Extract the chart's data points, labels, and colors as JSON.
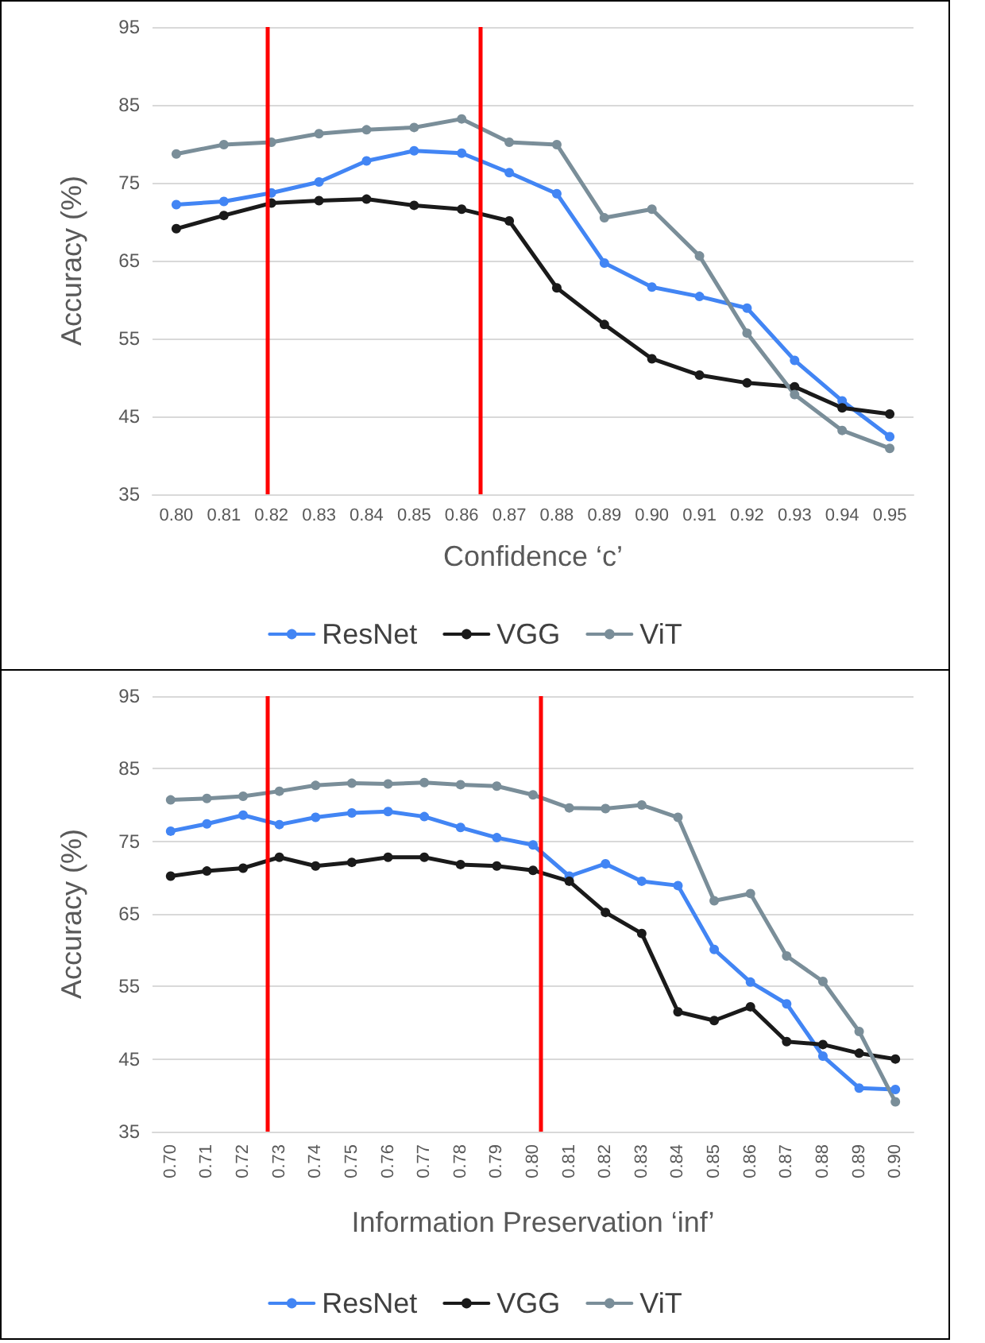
{
  "chart_data": [
    {
      "type": "line",
      "xlabel": "Confidence ‘c’",
      "ylabel": "Accuracy (%)",
      "x": [
        0.8,
        0.81,
        0.82,
        0.83,
        0.84,
        0.85,
        0.86,
        0.87,
        0.88,
        0.89,
        0.9,
        0.91,
        0.92,
        0.93,
        0.94,
        0.95
      ],
      "series": [
        {
          "name": "ResNet",
          "color": "#4285f4",
          "values": [
            72.2,
            72.6,
            73.7,
            75.1,
            77.8,
            79.1,
            78.8,
            76.3,
            73.6,
            64.7,
            61.6,
            60.4,
            58.9,
            52.2,
            47.0,
            42.4
          ]
        },
        {
          "name": "VGG",
          "color": "#1a1a1a",
          "values": [
            69.1,
            70.8,
            72.4,
            72.7,
            72.9,
            72.1,
            71.6,
            70.1,
            61.5,
            56.8,
            52.4,
            50.3,
            49.3,
            48.8,
            46.1,
            45.3
          ]
        },
        {
          "name": "ViT",
          "color": "#7a8e99",
          "values": [
            78.7,
            79.9,
            80.2,
            81.3,
            81.8,
            82.1,
            83.2,
            80.2,
            79.9,
            70.5,
            71.6,
            65.6,
            55.7,
            47.8,
            43.2,
            40.9
          ]
        }
      ],
      "xlim": [
        0.795,
        0.955
      ],
      "xticks": [
        {
          "value": 0.8,
          "label": "0.80"
        },
        {
          "value": 0.81,
          "label": "0.81"
        },
        {
          "value": 0.82,
          "label": "0.82"
        },
        {
          "value": 0.83,
          "label": "0.83"
        },
        {
          "value": 0.84,
          "label": "0.84"
        },
        {
          "value": 0.85,
          "label": "0.85"
        },
        {
          "value": 0.86,
          "label": "0.86"
        },
        {
          "value": 0.87,
          "label": "0.87"
        },
        {
          "value": 0.88,
          "label": "0.88"
        },
        {
          "value": 0.89,
          "label": "0.89"
        },
        {
          "value": 0.9,
          "label": "0.90"
        },
        {
          "value": 0.91,
          "label": "0.91"
        },
        {
          "value": 0.92,
          "label": "0.92"
        },
        {
          "value": 0.93,
          "label": "0.93"
        },
        {
          "value": 0.94,
          "label": "0.94"
        },
        {
          "value": 0.95,
          "label": "0.95"
        }
      ],
      "ylim": [
        35,
        95
      ],
      "yticks": [
        35,
        45,
        55,
        65,
        75,
        85,
        95
      ],
      "ref_lines": [
        {
          "axis": "x",
          "value": 0.819,
          "color": "#ff0000"
        },
        {
          "axis": "x",
          "value": 0.864,
          "color": "#ff0000"
        }
      ],
      "grid": "y",
      "legend": "bottom",
      "marker": "circle",
      "line_style": "solid"
    },
    {
      "type": "line",
      "xlabel": "Information Preservation ‘inf’",
      "ylabel": "Accuracy (%)",
      "x": [
        0.7,
        0.71,
        0.72,
        0.73,
        0.74,
        0.75,
        0.76,
        0.77,
        0.78,
        0.79,
        0.8,
        0.81,
        0.82,
        0.83,
        0.84,
        0.85,
        0.86,
        0.87,
        0.88,
        0.89,
        0.9
      ],
      "series": [
        {
          "name": "ResNet",
          "color": "#4285f4",
          "values": [
            76.4,
            77.4,
            78.6,
            77.3,
            78.3,
            78.9,
            79.1,
            78.4,
            76.9,
            75.5,
            74.5,
            70.2,
            71.9,
            69.5,
            68.9,
            60.1,
            55.6,
            52.6,
            45.4,
            41.0,
            40.8
          ]
        },
        {
          "name": "VGG",
          "color": "#1a1a1a",
          "values": [
            70.2,
            70.9,
            71.3,
            72.8,
            71.6,
            72.1,
            72.8,
            72.8,
            71.8,
            71.6,
            71.0,
            69.5,
            65.2,
            62.3,
            51.5,
            50.3,
            52.2,
            47.4,
            47.0,
            45.8,
            45.0
          ]
        },
        {
          "name": "ViT",
          "color": "#7a8e99",
          "values": [
            80.7,
            80.9,
            81.2,
            81.9,
            82.7,
            83.0,
            82.9,
            83.1,
            82.8,
            82.6,
            81.4,
            79.6,
            79.5,
            80.0,
            78.3,
            66.8,
            67.8,
            59.2,
            55.7,
            48.8,
            39.1
          ]
        }
      ],
      "xlim": [
        0.695,
        0.905
      ],
      "xticks": [
        {
          "value": 0.7,
          "label": "0.70"
        },
        {
          "value": 0.71,
          "label": "0.71"
        },
        {
          "value": 0.72,
          "label": "0.72"
        },
        {
          "value": 0.73,
          "label": "0.73"
        },
        {
          "value": 0.74,
          "label": "0.74"
        },
        {
          "value": 0.75,
          "label": "0.75"
        },
        {
          "value": 0.76,
          "label": "0.76"
        },
        {
          "value": 0.77,
          "label": "0.77"
        },
        {
          "value": 0.78,
          "label": "0.78"
        },
        {
          "value": 0.79,
          "label": "0.79"
        },
        {
          "value": 0.8,
          "label": "0.80"
        },
        {
          "value": 0.81,
          "label": "0.81"
        },
        {
          "value": 0.82,
          "label": "0.82"
        },
        {
          "value": 0.83,
          "label": "0.83"
        },
        {
          "value": 0.84,
          "label": "0.84"
        },
        {
          "value": 0.85,
          "label": "0.85"
        },
        {
          "value": 0.86,
          "label": "0.86"
        },
        {
          "value": 0.87,
          "label": "0.87"
        },
        {
          "value": 0.88,
          "label": "0.88"
        },
        {
          "value": 0.89,
          "label": "0.89"
        },
        {
          "value": 0.9,
          "label": "0.90"
        }
      ],
      "ylim": [
        35,
        95
      ],
      "yticks": [
        35,
        45,
        55,
        65,
        75,
        85,
        95
      ],
      "ref_lines": [
        {
          "axis": "x",
          "value": 0.7265,
          "color": "#ff0000"
        },
        {
          "axis": "x",
          "value": 0.802,
          "color": "#ff0000"
        }
      ],
      "grid": "y",
      "legend": "bottom",
      "marker": "circle",
      "line_style": "solid"
    }
  ]
}
